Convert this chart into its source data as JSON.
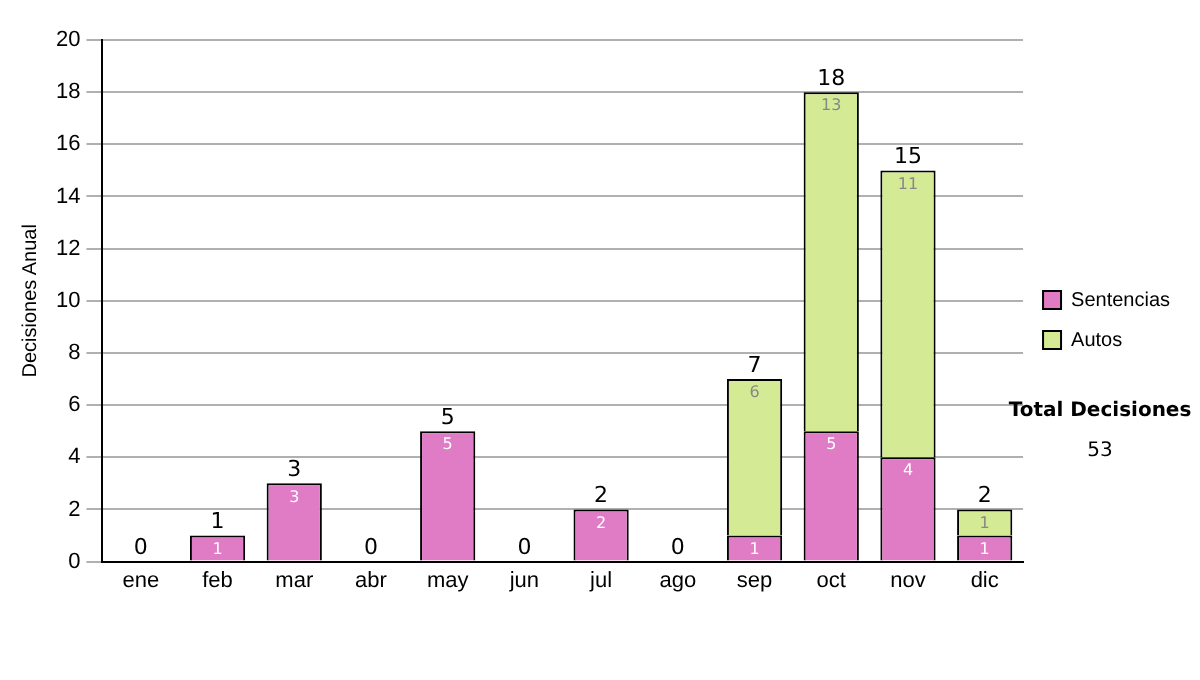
{
  "chart_data": {
    "type": "bar",
    "stacked": true,
    "ylabel": "Decisiones Anual",
    "categories": [
      "ene",
      "feb",
      "mar",
      "abr",
      "may",
      "jun",
      "jul",
      "ago",
      "sep",
      "oct",
      "nov",
      "dic"
    ],
    "series": [
      {
        "name": "Sentencias",
        "color": "#e07cc6",
        "values": [
          0,
          1,
          3,
          0,
          5,
          0,
          2,
          0,
          1,
          5,
          4,
          1
        ],
        "value_labels": [
          null,
          "1",
          "3",
          null,
          "5",
          null,
          "2",
          null,
          "1",
          "5",
          "4",
          "1"
        ]
      },
      {
        "name": "Autos",
        "color": "#d4ea94",
        "values": [
          0,
          0,
          0,
          0,
          0,
          0,
          0,
          0,
          6,
          13,
          11,
          1
        ],
        "value_labels": [
          null,
          null,
          null,
          null,
          null,
          null,
          null,
          null,
          "6",
          "13",
          "11",
          "1"
        ]
      }
    ],
    "totals": [
      "0",
      "1",
      "3",
      "0",
      "5",
      "0",
      "2",
      "0",
      "7",
      "18",
      "15",
      "2"
    ],
    "ylim": [
      0,
      20
    ],
    "yticks": [
      0,
      2,
      4,
      6,
      8,
      10,
      12,
      14,
      16,
      18,
      20
    ],
    "grid": "y",
    "legend": "right",
    "annotations": [
      "Total Decisiones",
      "53"
    ]
  }
}
